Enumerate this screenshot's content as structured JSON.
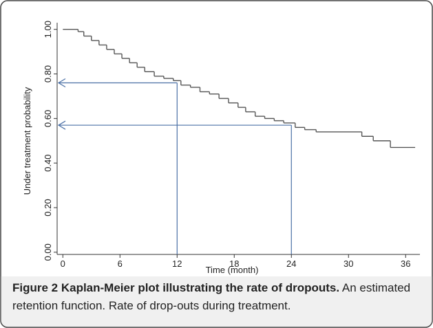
{
  "chart_data": {
    "type": "step",
    "xlabel": "Time (month)",
    "ylabel": "Under treatment probability",
    "series": [
      {
        "color": "#555555",
        "x": [
          0,
          1.6,
          2.2,
          3.0,
          3.8,
          4.6,
          5.4,
          6.2,
          7.0,
          7.8,
          8.6,
          9.6,
          10.6,
          11.6,
          12.4,
          13.4,
          14.4,
          15.4,
          16.4,
          17.4,
          18.4,
          19.2,
          20.2,
          21.2,
          22.2,
          23.2,
          24.4,
          25.4,
          26.6,
          31.4,
          32.6,
          34.4,
          37
        ],
        "values": [
          1.0,
          0.99,
          0.97,
          0.95,
          0.93,
          0.91,
          0.89,
          0.87,
          0.85,
          0.83,
          0.81,
          0.79,
          0.78,
          0.77,
          0.75,
          0.74,
          0.72,
          0.71,
          0.69,
          0.67,
          0.65,
          0.63,
          0.61,
          0.6,
          0.59,
          0.58,
          0.56,
          0.55,
          0.54,
          0.52,
          0.5,
          0.47,
          0.47
        ]
      }
    ],
    "reference_lines": [
      {
        "x": 12,
        "y": 0.76,
        "color": "#4a6fa5"
      },
      {
        "x": 24,
        "y": 0.57,
        "color": "#4a6fa5"
      }
    ],
    "xlim": [
      -0.6,
      37.5
    ],
    "xticks": [
      0,
      6,
      12,
      18,
      24,
      30,
      36
    ],
    "ylim": [
      -0.01,
      1.03
    ],
    "yticks": [
      {
        "value": 0,
        "label": "0.00"
      },
      {
        "value": 0.2,
        "label": "0.20"
      },
      {
        "value": 0.4,
        "label": "0.40"
      },
      {
        "value": 0.6,
        "label": "0.60"
      },
      {
        "value": 0.8,
        "label": "0.80"
      },
      {
        "value": 1,
        "label": "1.00"
      }
    ],
    "grid": false
  },
  "caption": {
    "label": "Figure 2 Kaplan-Meier plot illustrating the rate of dropouts.",
    "text": "An estimated retention function. Rate of drop-outs during treatment."
  }
}
